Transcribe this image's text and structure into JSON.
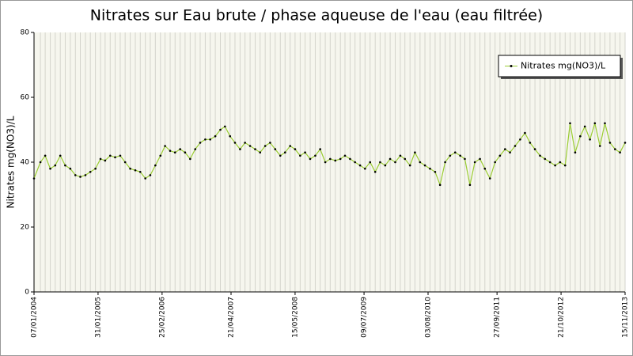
{
  "chart_data": {
    "type": "line",
    "title": "Nitrates sur Eau brute / phase aqueuse de l'eau (eau filtrée)",
    "y_label": "Nitrates mg(NO3)/L",
    "ylim": [
      0,
      80
    ],
    "yticks": [
      0,
      20,
      40,
      60,
      80
    ],
    "xlim": [
      "2004-01-07",
      "2013-11-15"
    ],
    "xticks": [
      {
        "value": "2004-01-07",
        "label": "07/01/2004"
      },
      {
        "value": "2005-01-31",
        "label": "31/01/2005"
      },
      {
        "value": "2006-02-25",
        "label": "25/02/2006"
      },
      {
        "value": "2007-04-21",
        "label": "21/04/2007"
      },
      {
        "value": "2008-05-15",
        "label": "15/05/2008"
      },
      {
        "value": "2009-07-09",
        "label": "09/07/2009"
      },
      {
        "value": "2010-08-03",
        "label": "03/08/2010"
      },
      {
        "value": "2011-09-27",
        "label": "27/09/2011"
      },
      {
        "value": "2012-10-21",
        "label": "21/10/2012"
      },
      {
        "value": "2013-11-15",
        "label": "15/11/2013"
      }
    ],
    "grid": true,
    "legend": "top-right",
    "x": [
      "2004-01-07",
      "2004-02-15",
      "2004-03-15",
      "2004-04-15",
      "2004-05-15",
      "2004-06-15",
      "2004-07-15",
      "2004-08-15",
      "2004-09-15",
      "2004-10-15",
      "2004-11-15",
      "2004-12-15",
      "2005-01-15",
      "2005-02-15",
      "2005-03-15",
      "2005-04-15",
      "2005-05-15",
      "2005-06-15",
      "2005-07-15",
      "2005-08-15",
      "2005-09-15",
      "2005-10-15",
      "2005-11-15",
      "2005-12-15",
      "2006-01-15",
      "2006-02-15",
      "2006-03-15",
      "2006-04-15",
      "2006-05-15",
      "2006-06-15",
      "2006-07-15",
      "2006-08-15",
      "2006-09-15",
      "2006-10-15",
      "2006-11-15",
      "2006-12-15",
      "2007-01-15",
      "2007-02-15",
      "2007-03-15",
      "2007-04-15",
      "2007-05-15",
      "2007-06-15",
      "2007-07-15",
      "2007-08-15",
      "2007-09-15",
      "2007-10-15",
      "2007-11-15",
      "2007-12-15",
      "2008-01-15",
      "2008-02-15",
      "2008-03-15",
      "2008-04-15",
      "2008-05-15",
      "2008-06-15",
      "2008-07-15",
      "2008-08-15",
      "2008-09-15",
      "2008-10-15",
      "2008-11-15",
      "2008-12-15",
      "2009-01-15",
      "2009-02-15",
      "2009-03-15",
      "2009-04-15",
      "2009-05-15",
      "2009-06-15",
      "2009-07-15",
      "2009-08-15",
      "2009-09-15",
      "2009-10-15",
      "2009-11-15",
      "2009-12-15",
      "2010-01-15",
      "2010-02-15",
      "2010-03-15",
      "2010-04-15",
      "2010-05-15",
      "2010-06-15",
      "2010-07-15",
      "2010-08-15",
      "2010-09-15",
      "2010-10-15",
      "2010-11-15",
      "2010-12-15",
      "2011-01-15",
      "2011-02-15",
      "2011-03-15",
      "2011-04-15",
      "2011-05-15",
      "2011-06-15",
      "2011-07-15",
      "2011-08-15",
      "2011-09-15",
      "2011-10-15",
      "2011-11-15",
      "2011-12-15",
      "2012-01-15",
      "2012-02-15",
      "2012-03-15",
      "2012-04-15",
      "2012-05-15",
      "2012-06-15",
      "2012-07-15",
      "2012-08-15",
      "2012-09-15",
      "2012-10-15",
      "2012-11-15",
      "2012-12-15",
      "2013-01-15",
      "2013-02-15",
      "2013-03-15",
      "2013-04-15",
      "2013-05-15",
      "2013-06-15",
      "2013-07-15",
      "2013-08-15",
      "2013-09-15",
      "2013-10-15",
      "2013-11-15"
    ],
    "series": [
      {
        "name": "Nitrates mg(NO3)/L",
        "color": "#9acd32",
        "marker_color": "#000000",
        "values": [
          35,
          40,
          42,
          38,
          39,
          42,
          39,
          38,
          36,
          35.5,
          36,
          37,
          38,
          41,
          40.5,
          42,
          41.5,
          42,
          40,
          38,
          37.5,
          37,
          35,
          36,
          39,
          42,
          45,
          43.5,
          43,
          44,
          43,
          41,
          44,
          46,
          47,
          47,
          48,
          50,
          51,
          48,
          46,
          44,
          46,
          45,
          44,
          43,
          45,
          46,
          44,
          42,
          43,
          45,
          44,
          42,
          43,
          41,
          42,
          44,
          40,
          41,
          40.5,
          41,
          42,
          41,
          40,
          39,
          38,
          40,
          37,
          40,
          39,
          41,
          40,
          42,
          41,
          39,
          43,
          40,
          39,
          38,
          37,
          33,
          40,
          42,
          43,
          42,
          41,
          33,
          40,
          41,
          38,
          35,
          40,
          42,
          44,
          43,
          45,
          47,
          49,
          46,
          44,
          42,
          41,
          40,
          39,
          40,
          39,
          52,
          43,
          48,
          51,
          47,
          52,
          45,
          52,
          46,
          44,
          43,
          46
        ]
      }
    ]
  }
}
